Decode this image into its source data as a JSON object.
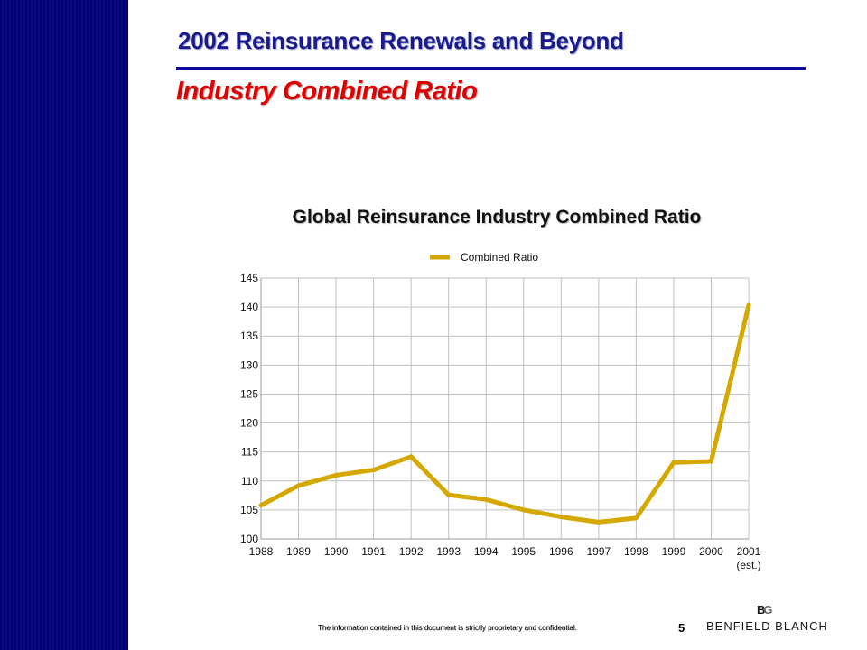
{
  "slide": {
    "title": "2002 Reinsurance Renewals and Beyond",
    "subtitle": "Industry Combined Ratio",
    "footer_note": "The information contained in this document is strictly proprietary and confidential.",
    "page_number": "5",
    "logo": {
      "mark": "BG",
      "text": "BENFIELD BLANCH"
    }
  },
  "colors": {
    "sidebar": "#00006e",
    "title": "#1a1a8c",
    "subtitle": "#e00000",
    "series_line": "#d4a800",
    "grid": "#c0c0c0"
  },
  "chart_data": {
    "type": "line",
    "title": "Global Reinsurance Industry Combined Ratio",
    "xlabel": "",
    "ylabel": "",
    "categories": [
      "1988",
      "1989",
      "1990",
      "1991",
      "1992",
      "1993",
      "1994",
      "1995",
      "1996",
      "1997",
      "1998",
      "1999",
      "2000",
      "2001"
    ],
    "category_sublabels": [
      "",
      "",
      "",
      "",
      "",
      "",
      "",
      "",
      "",
      "",
      "",
      "",
      "",
      "(est.)"
    ],
    "series": [
      {
        "name": "Combined Ratio",
        "values": [
          105.8,
          109.2,
          111.0,
          111.9,
          114.2,
          107.6,
          106.8,
          105.0,
          103.8,
          102.9,
          103.6,
          113.2,
          113.4,
          140.3
        ]
      }
    ],
    "ylim": [
      100,
      145
    ],
    "yticks": [
      100,
      105,
      110,
      115,
      120,
      125,
      130,
      135,
      140,
      145
    ],
    "grid": true,
    "legend_position": "top-center"
  }
}
